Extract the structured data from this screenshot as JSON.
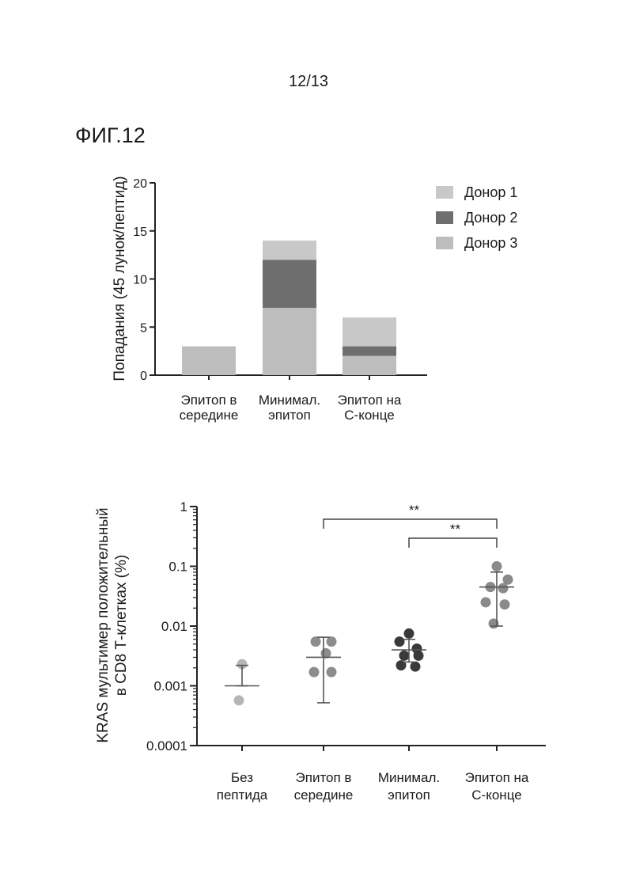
{
  "page": {
    "page_number": "12/13",
    "figure_label": "ФИГ.12"
  },
  "chart_data": [
    {
      "type": "bar",
      "stacked": true,
      "ylabel": "Попадания (45 лунок/пептид)",
      "ylim": [
        0,
        20
      ],
      "yticks": [
        "0",
        "5",
        "10",
        "15",
        "20"
      ],
      "yticks_values": [
        0,
        5,
        10,
        15,
        20
      ],
      "categories": [
        [
          "Эпитоп в",
          "середине"
        ],
        [
          "Минимал.",
          "эпитоп"
        ],
        [
          "Эпитоп на",
          "С-конце"
        ]
      ],
      "series": [
        {
          "name": "Донор 3",
          "values": [
            3,
            7,
            2
          ],
          "color": "#bdbdbd"
        },
        {
          "name": "Донор 2",
          "values": [
            0,
            5,
            1
          ],
          "color": "#6e6e6e"
        },
        {
          "name": "Донор 1",
          "values": [
            0,
            2,
            3
          ],
          "color": "#c8c8c8"
        }
      ],
      "legend": {
        "position": "top-right",
        "entries": [
          {
            "label": "Донор 1",
            "color": "#c8c8c8"
          },
          {
            "label": "Донор 2",
            "color": "#6e6e6e"
          },
          {
            "label": "Донор 3",
            "color": "#bdbdbd"
          }
        ]
      }
    },
    {
      "type": "scatter",
      "yscale": "log",
      "ylabel": [
        "KRAS мультимер положительный",
        "в CD8 Т-клетках (%)"
      ],
      "ylim": [
        0.0001,
        1
      ],
      "yticks": [
        "0.0001",
        "0.001",
        "0.01",
        "0.1",
        "1"
      ],
      "yticks_values": [
        0.0001,
        0.001,
        0.01,
        0.1,
        1
      ],
      "categories": [
        [
          "Без",
          "пептида"
        ],
        [
          "Эпитоп в",
          "середине"
        ],
        [
          "Минимал.",
          "эпитоп"
        ],
        [
          "Эпитоп на",
          "С-конце"
        ]
      ],
      "groups": [
        {
          "points": [
            0.0023,
            0.00057
          ],
          "mean": 0.001,
          "err_low": 0.001,
          "err_high": 0.0022,
          "color": "#b5b5b5"
        },
        {
          "points": [
            0.0055,
            0.0055,
            0.0035,
            0.0017,
            0.0017
          ],
          "mean": 0.003,
          "err_low": 0.00052,
          "err_high": 0.0065,
          "color": "#8c8c8c"
        },
        {
          "points": [
            0.0075,
            0.0055,
            0.0042,
            0.0032,
            0.0032,
            0.0022,
            0.0021
          ],
          "mean": 0.004,
          "err_low": 0.0025,
          "err_high": 0.006,
          "color": "#3a3a3a"
        },
        {
          "points": [
            0.1,
            0.06,
            0.045,
            0.043,
            0.025,
            0.023,
            0.011
          ],
          "mean": 0.045,
          "err_low": 0.01,
          "err_high": 0.08,
          "color": "#8a8a8a"
        }
      ],
      "significance": [
        {
          "from": 1,
          "to": 3,
          "label": "**"
        },
        {
          "from": 2,
          "to": 3,
          "label": "**"
        }
      ]
    }
  ]
}
